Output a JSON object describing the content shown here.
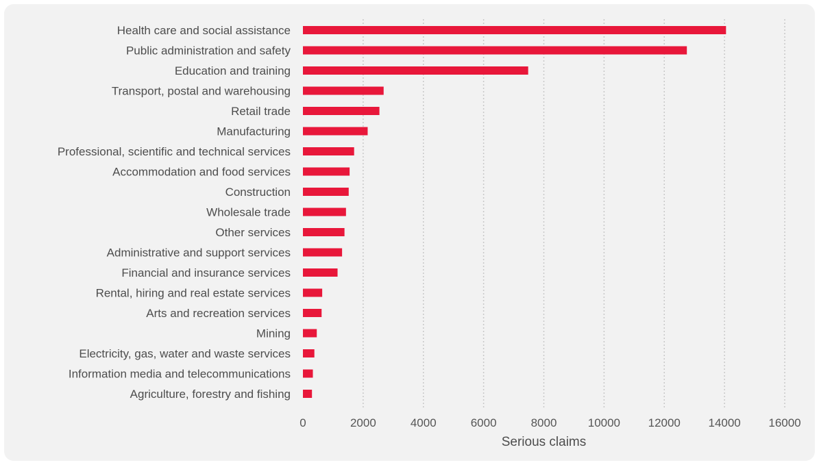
{
  "chart_data": {
    "type": "bar",
    "orientation": "horizontal",
    "categories": [
      "Health care and social assistance",
      "Public administration and safety",
      "Education and training",
      "Transport, postal and warehousing",
      "Retail trade",
      "Manufacturing",
      "Professional, scientific and technical services",
      "Accommodation and food services",
      "Construction",
      "Wholesale trade",
      "Other services",
      "Administrative and support services",
      "Financial and insurance services",
      "Rental, hiring and real estate services",
      "Arts and recreation services",
      "Mining",
      "Electricity, gas, water and waste services",
      "Information media and telecommunications",
      "Agriculture, forestry and fishing"
    ],
    "values": [
      14050,
      12750,
      7480,
      2680,
      2540,
      2150,
      1700,
      1550,
      1520,
      1430,
      1380,
      1300,
      1150,
      640,
      620,
      460,
      380,
      330,
      300
    ],
    "xlabel": "Serious claims",
    "ylabel": "",
    "xlim": [
      0,
      16000
    ],
    "xticks": [
      0,
      2000,
      4000,
      6000,
      8000,
      10000,
      12000,
      14000,
      16000
    ],
    "grid": "vertical dotted",
    "bar_color": "#e8173a",
    "grid_color": "#c8c8c8",
    "background_color": "#f2f2f2"
  }
}
